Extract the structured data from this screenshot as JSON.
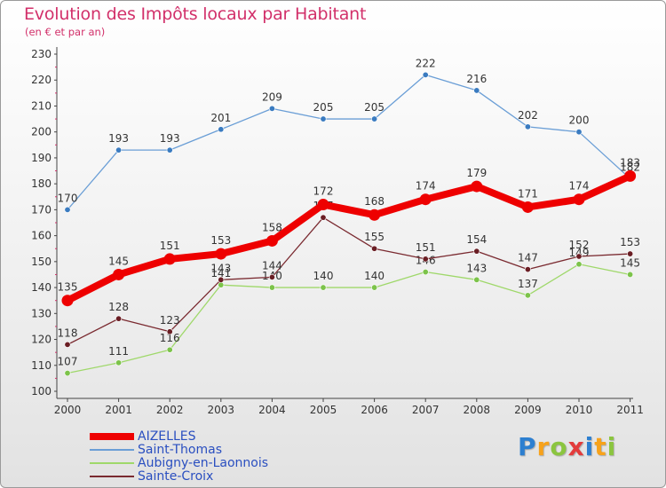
{
  "title": "Evolution des Impôts locaux par Habitant",
  "subtitle": "(en € et par an)",
  "logo": {
    "text": "Proxiti",
    "letters": [
      "P",
      "r",
      "o",
      "x",
      "i",
      "t",
      "i"
    ],
    "colors": [
      "#2d7fd0",
      "#f7a21b",
      "#8bc53f",
      "#e33b3b",
      "#2d7fd0",
      "#f7a21b",
      "#8bc53f"
    ]
  },
  "chart_data": {
    "type": "line",
    "categories": [
      "2000",
      "2001",
      "2002",
      "2003",
      "2004",
      "2005",
      "2006",
      "2007",
      "2008",
      "2009",
      "2010",
      "2011"
    ],
    "ylim": [
      100,
      230
    ],
    "yticks": [
      100,
      110,
      120,
      130,
      140,
      150,
      160,
      170,
      180,
      190,
      200,
      210,
      220,
      230
    ],
    "grid": false,
    "legend_position": "bottom-left",
    "series": [
      {
        "name": "Saint-Thomas",
        "color": "#6a9ed6",
        "marker": "#3a7bc0",
        "values": [
          170,
          193,
          193,
          201,
          209,
          205,
          205,
          222,
          216,
          202,
          200,
          182
        ],
        "labels": [
          "170",
          "193",
          "193",
          "201",
          "209",
          "205",
          "205",
          "222",
          "216",
          "202",
          "200",
          "182"
        ]
      },
      {
        "name": "Aubigny-en-Laonnois",
        "color": "#9fd86a",
        "marker": "#7cc34a",
        "values": [
          107,
          111,
          116,
          141,
          140,
          140,
          140,
          146,
          143,
          137,
          149,
          145
        ],
        "labels": [
          "107",
          "111",
          "116",
          "141",
          "140",
          "140",
          "140",
          "146",
          "143",
          "137",
          "149",
          "145"
        ]
      },
      {
        "name": "Sainte-Croix",
        "color": "#7a2a30",
        "marker": "#6a1e24",
        "values": [
          118,
          128,
          123,
          143,
          144,
          167,
          155,
          151,
          154,
          147,
          152,
          153
        ],
        "labels": [
          "118",
          "128",
          "123",
          "143",
          "144",
          "167",
          "155",
          "151",
          "154",
          "147",
          "152",
          "153"
        ]
      },
      {
        "name": "AIZELLES",
        "color": "#ee0000",
        "marker": "#ee0000",
        "values": [
          135,
          145,
          151,
          153,
          158,
          172,
          168,
          174,
          179,
          171,
          174,
          183
        ],
        "labels": [
          "135",
          "145",
          "151",
          "153",
          "158",
          "172",
          "168",
          "174",
          "179",
          "171",
          "174",
          "183"
        ]
      }
    ],
    "legend_order": [
      "AIZELLES",
      "Saint-Thomas",
      "Aubigny-en-Laonnois",
      "Sainte-Croix"
    ]
  }
}
